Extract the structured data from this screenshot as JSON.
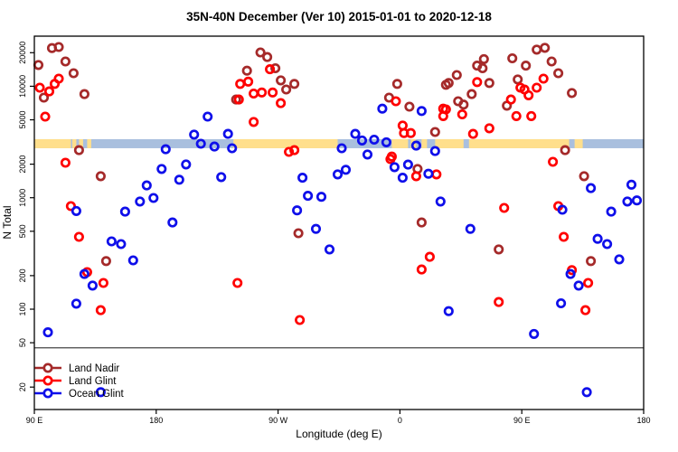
{
  "title": "35N-40N December (Ver 10)   2015-01-01 to 2020-12-18",
  "axes": {
    "x": {
      "label": "Longitude (deg E)",
      "ticks": [
        {
          "pos": 0,
          "label": "90 E"
        },
        {
          "pos": 90,
          "label": "180"
        },
        {
          "pos": 180,
          "label": "90 W"
        },
        {
          "pos": 270,
          "label": "0"
        },
        {
          "pos": 360,
          "label": "90 E"
        },
        {
          "pos": 450,
          "label": "180"
        }
      ]
    },
    "y": {
      "label": "N Total",
      "log": true,
      "ticks": [
        20,
        50,
        100,
        200,
        500,
        1000,
        2000,
        5000,
        10000,
        20000
      ]
    }
  },
  "legend": {
    "items": [
      {
        "label": "Land Nadir",
        "color": "#A52A2A"
      },
      {
        "label": "Land Glint",
        "color": "#FF0000"
      },
      {
        "label": "Ocean Glint",
        "color": "#0F0FEA"
      }
    ]
  },
  "map_band": {
    "note": "land/ocean strip along the 35N-40N latitude band",
    "ocean_color": "#A9BFDE",
    "land_color": "#FFDF8C",
    "n_low": 2780,
    "n_high": 3350,
    "land_segments_deg": [
      [
        0,
        27
      ],
      [
        28,
        31
      ],
      [
        33,
        36
      ],
      [
        39,
        42
      ],
      [
        147,
        224
      ],
      [
        264,
        276
      ],
      [
        278,
        282
      ],
      [
        286,
        290
      ],
      [
        296,
        317
      ],
      [
        321,
        395
      ],
      [
        399,
        405
      ]
    ]
  },
  "divider_line": {
    "n": 45
  },
  "chart_data": {
    "type": "scatter",
    "title": "35N-40N December (Ver 10)   2015-01-01 to 2020-12-18",
    "xlabel": "Longitude (deg E)",
    "ylabel": "N Total",
    "x_axis_note": "x = degrees along axis starting at 90E, wrapping 90E→180→90W→0→90E→180, range 0-450",
    "y_log": true,
    "ylim": [
      15,
      30000
    ],
    "legend_position": "bottom-left",
    "grid": false,
    "series": [
      {
        "name": "Land Nadir",
        "color": "#A52A2A",
        "points": [
          [
            13,
            22000
          ],
          [
            18,
            22500
          ],
          [
            23,
            16700
          ],
          [
            3,
            15500
          ],
          [
            29,
            13100
          ],
          [
            7,
            7900
          ],
          [
            37,
            8500
          ],
          [
            33,
            2670
          ],
          [
            49,
            1560
          ],
          [
            53,
            270
          ],
          [
            149,
            7600
          ],
          [
            167,
            20100
          ],
          [
            172,
            18300
          ],
          [
            157,
            13800
          ],
          [
            178,
            14500
          ],
          [
            182,
            11300
          ],
          [
            186,
            9350
          ],
          [
            192,
            10500
          ],
          [
            195,
            480
          ],
          [
            286,
            600
          ],
          [
            268,
            10500
          ],
          [
            262,
            7900
          ],
          [
            277,
            6560
          ],
          [
            283,
            1810
          ],
          [
            296,
            3890
          ],
          [
            371,
            21300
          ],
          [
            377,
            22100
          ],
          [
            332,
            17500
          ],
          [
            353,
            17800
          ],
          [
            327,
            15300
          ],
          [
            331,
            14500
          ],
          [
            363,
            15300
          ],
          [
            382,
            16700
          ],
          [
            312,
            12600
          ],
          [
            387,
            13100
          ],
          [
            306,
            10700
          ],
          [
            336,
            10700
          ],
          [
            323,
            8500
          ],
          [
            397,
            8700
          ],
          [
            349,
            6700
          ],
          [
            313,
            7340
          ],
          [
            317,
            6850
          ],
          [
            357,
            11500
          ],
          [
            392,
            2670
          ],
          [
            406,
            1560
          ],
          [
            343,
            344
          ],
          [
            411,
            270
          ],
          [
            304,
            10300
          ]
        ]
      },
      {
        "name": "Land Glint",
        "color": "#FF0000",
        "points": [
          [
            4,
            9700
          ],
          [
            11,
            9000
          ],
          [
            15,
            10500
          ],
          [
            18,
            11700
          ],
          [
            8,
            5340
          ],
          [
            23,
            2060
          ],
          [
            27,
            840
          ],
          [
            33,
            446
          ],
          [
            39,
            215
          ],
          [
            49,
            98
          ],
          [
            51,
            172
          ],
          [
            150,
            172
          ],
          [
            174,
            14200
          ],
          [
            152,
            10500
          ],
          [
            158,
            11000
          ],
          [
            162,
            8600
          ],
          [
            168,
            8800
          ],
          [
            176,
            8800
          ],
          [
            182,
            7060
          ],
          [
            162,
            4780
          ],
          [
            188,
            2580
          ],
          [
            192,
            2670
          ],
          [
            151,
            7600
          ],
          [
            264,
            2340
          ],
          [
            267,
            7340
          ],
          [
            272,
            4440
          ],
          [
            273,
            3800
          ],
          [
            278,
            3800
          ],
          [
            302,
            6300
          ],
          [
            302,
            5400
          ],
          [
            263,
            2220
          ],
          [
            282,
            1560
          ],
          [
            297,
            1620
          ],
          [
            196,
            80
          ],
          [
            292,
            295
          ],
          [
            286,
            227
          ],
          [
            327,
            10900
          ],
          [
            352,
            7600
          ],
          [
            356,
            5400
          ],
          [
            367,
            5400
          ],
          [
            359,
            9700
          ],
          [
            362,
            9350
          ],
          [
            371,
            9700
          ],
          [
            376,
            11700
          ],
          [
            365,
            8300
          ],
          [
            324,
            3740
          ],
          [
            336,
            4200
          ],
          [
            304,
            6200
          ],
          [
            316,
            5600
          ],
          [
            383,
            2100
          ],
          [
            347,
            810
          ],
          [
            387,
            840
          ],
          [
            391,
            446
          ],
          [
            397,
            224
          ],
          [
            409,
            172
          ],
          [
            407,
            98
          ],
          [
            343,
            116
          ]
        ]
      },
      {
        "name": "Ocean Glint",
        "color": "#0F0FEA",
        "points": [
          [
            128,
            5340
          ],
          [
            118,
            3680
          ],
          [
            123,
            3050
          ],
          [
            133,
            2880
          ],
          [
            143,
            3740
          ],
          [
            146,
            2780
          ],
          [
            97,
            2720
          ],
          [
            94,
            1810
          ],
          [
            112,
            1990
          ],
          [
            107,
            1450
          ],
          [
            138,
            1530
          ],
          [
            83,
            1290
          ],
          [
            88,
            995
          ],
          [
            78,
            925
          ],
          [
            67,
            750
          ],
          [
            31,
            760
          ],
          [
            102,
            600
          ],
          [
            57,
            406
          ],
          [
            64,
            384
          ],
          [
            73,
            274
          ],
          [
            37,
            207
          ],
          [
            43,
            163
          ],
          [
            31,
            112
          ],
          [
            10,
            62
          ],
          [
            49,
            18
          ],
          [
            257,
            6300
          ],
          [
            286,
            6000
          ],
          [
            237,
            3740
          ],
          [
            242,
            3260
          ],
          [
            251,
            3320
          ],
          [
            260,
            3140
          ],
          [
            227,
            2780
          ],
          [
            246,
            2440
          ],
          [
            224,
            1620
          ],
          [
            230,
            1780
          ],
          [
            198,
            1510
          ],
          [
            202,
            1040
          ],
          [
            212,
            1020
          ],
          [
            194,
            770
          ],
          [
            266,
            1880
          ],
          [
            276,
            1980
          ],
          [
            272,
            1510
          ],
          [
            291,
            1640
          ],
          [
            300,
            925
          ],
          [
            208,
            525
          ],
          [
            218,
            344
          ],
          [
            282,
            2930
          ],
          [
            296,
            2620
          ],
          [
            411,
            1220
          ],
          [
            441,
            1310
          ],
          [
            438,
            925
          ],
          [
            445,
            945
          ],
          [
            426,
            750
          ],
          [
            390,
            780
          ],
          [
            322,
            525
          ],
          [
            416,
            428
          ],
          [
            423,
            384
          ],
          [
            432,
            280
          ],
          [
            396,
            207
          ],
          [
            402,
            163
          ],
          [
            389,
            113
          ],
          [
            306,
            96
          ],
          [
            369,
            60
          ],
          [
            408,
            18
          ]
        ]
      }
    ]
  }
}
